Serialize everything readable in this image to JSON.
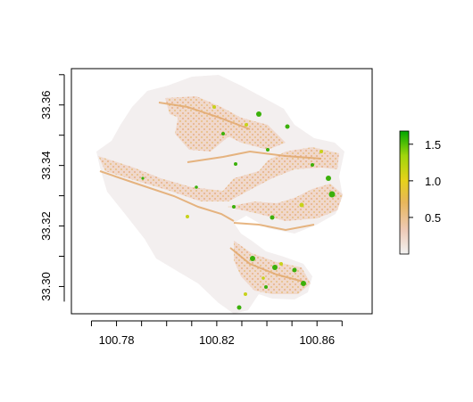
{
  "map": {
    "x_ticks": [
      "100.78",
      "100.82",
      "100.86"
    ],
    "y_ticks": [
      "33.30",
      "33.32",
      "33.34",
      "33.36"
    ],
    "x_range": [
      100.762,
      100.882
    ],
    "y_range": [
      33.291,
      33.372
    ],
    "x_tick_values": [
      100.78,
      100.82,
      100.86
    ],
    "y_tick_values": [
      33.3,
      33.32,
      33.34,
      33.36
    ]
  },
  "legend": {
    "ticks": [
      "0.5",
      "1.0",
      "1.5"
    ],
    "tick_values": [
      0.5,
      1.0,
      1.5
    ],
    "range": [
      0.0,
      1.68
    ],
    "colors": [
      "#f2f2f2",
      "#eec9b5",
      "#e7b65b",
      "#e6d21a",
      "#a0d60c",
      "#00a600"
    ]
  }
}
